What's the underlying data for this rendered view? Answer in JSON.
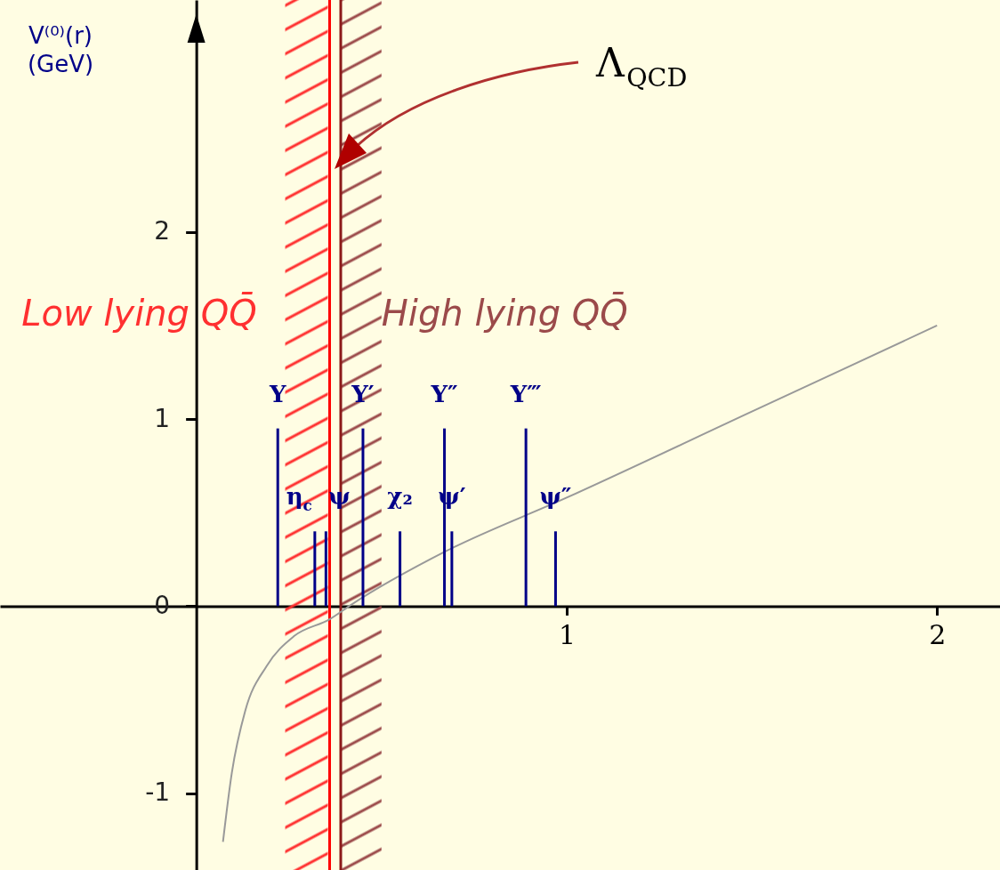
{
  "chart_data": {
    "type": "line",
    "ylabel": "V⁽⁰⁾(r)\n(GeV)",
    "xlim": [
      -0.53,
      2.17
    ],
    "ylim": [
      -1.41,
      3.24
    ],
    "xticks": [
      1,
      2
    ],
    "yticks": [
      -1,
      0,
      1,
      2
    ],
    "series": [
      {
        "color": "#999999",
        "x": [
          0.072,
          0.096,
          0.132,
          0.19,
          0.264,
          0.36,
          0.42,
          0.67,
          1.0,
          1.5,
          2.0
        ],
        "values": [
          -1.26,
          -0.89,
          -0.56,
          -0.32,
          -0.16,
          -0.07,
          0.01,
          0.29,
          0.58,
          1.04,
          1.5
        ]
      },
      {
        "type": "bar",
        "color": "#000088",
        "x": [
          0.22,
          0.32,
          0.35,
          0.45,
          0.55,
          0.67,
          0.69,
          0.89,
          0.97
        ],
        "values": [
          0.95,
          0.4,
          0.4,
          0.95,
          0.4,
          0.95,
          0.4,
          0.95,
          0.4
        ]
      }
    ],
    "ref_lines": [
      {
        "axis": "x",
        "value": 0.36,
        "color": "#ff0000"
      },
      {
        "axis": "x",
        "value": 0.39,
        "color": "#8b1a1a"
      }
    ],
    "bands": [
      {
        "axis": "x",
        "from": 0.24,
        "to": 0.355,
        "label": "Low lying QQ̄",
        "color": "#ff3030"
      },
      {
        "axis": "x",
        "from": 0.39,
        "to": 0.5,
        "label": "High lying QQ̄",
        "color": "#9b4a4a"
      }
    ],
    "annotations": [
      {
        "text": "Υ",
        "x": 0.22,
        "y": 0.95
      },
      {
        "text": "η$_{c}$",
        "x": 0.32,
        "y": 0.4
      },
      {
        "text": "ψ",
        "x": 0.35,
        "y": 0.4
      },
      {
        "text": "Υ′",
        "x": 0.45,
        "y": 0.95
      },
      {
        "text": "χ₂",
        "x": 0.55,
        "y": 0.4
      },
      {
        "text": "Υ″",
        "x": 0.67,
        "y": 0.95
      },
      {
        "text": "ψ′",
        "x": 0.69,
        "y": 0.4
      },
      {
        "text": "Υ‴",
        "x": 0.89,
        "y": 0.95
      },
      {
        "text": "ψ″",
        "x": 0.97,
        "y": 0.4
      },
      "Λ$_{QCD}$"
    ]
  }
}
